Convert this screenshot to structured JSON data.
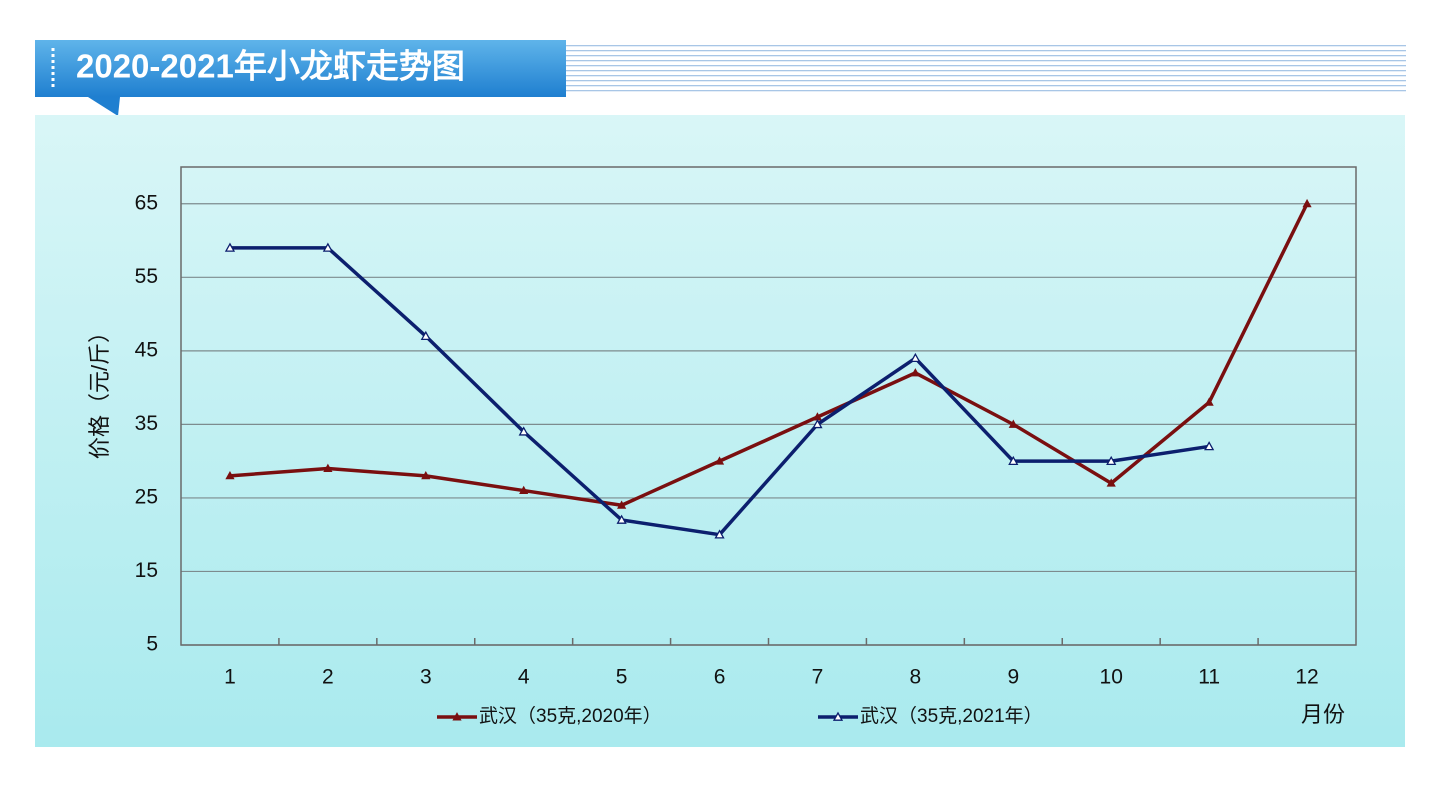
{
  "chart_data": {
    "type": "line",
    "title": "2020-2021年小龙虾走势图",
    "y_label": "价格（元/斤）",
    "x_label": "月份",
    "categories": [
      "1",
      "2",
      "3",
      "4",
      "5",
      "6",
      "7",
      "8",
      "9",
      "10",
      "11",
      "12"
    ],
    "series": [
      {
        "name": "武汉（35克,2020年）",
        "color": "#7a0f10",
        "marker": "filled-triangle",
        "values": [
          28,
          29,
          28,
          26,
          24,
          30,
          36,
          42,
          35,
          27,
          38,
          65
        ]
      },
      {
        "name": "武汉（35克,2021年）",
        "color": "#0c1f6e",
        "marker": "hollow-triangle",
        "values": [
          59,
          59,
          47,
          34,
          22,
          20,
          35,
          44,
          30,
          30,
          32,
          null
        ]
      }
    ],
    "ylim": [
      5,
      70
    ],
    "yticks": [
      5,
      15,
      25,
      35,
      45,
      55,
      65
    ],
    "grid": true
  }
}
